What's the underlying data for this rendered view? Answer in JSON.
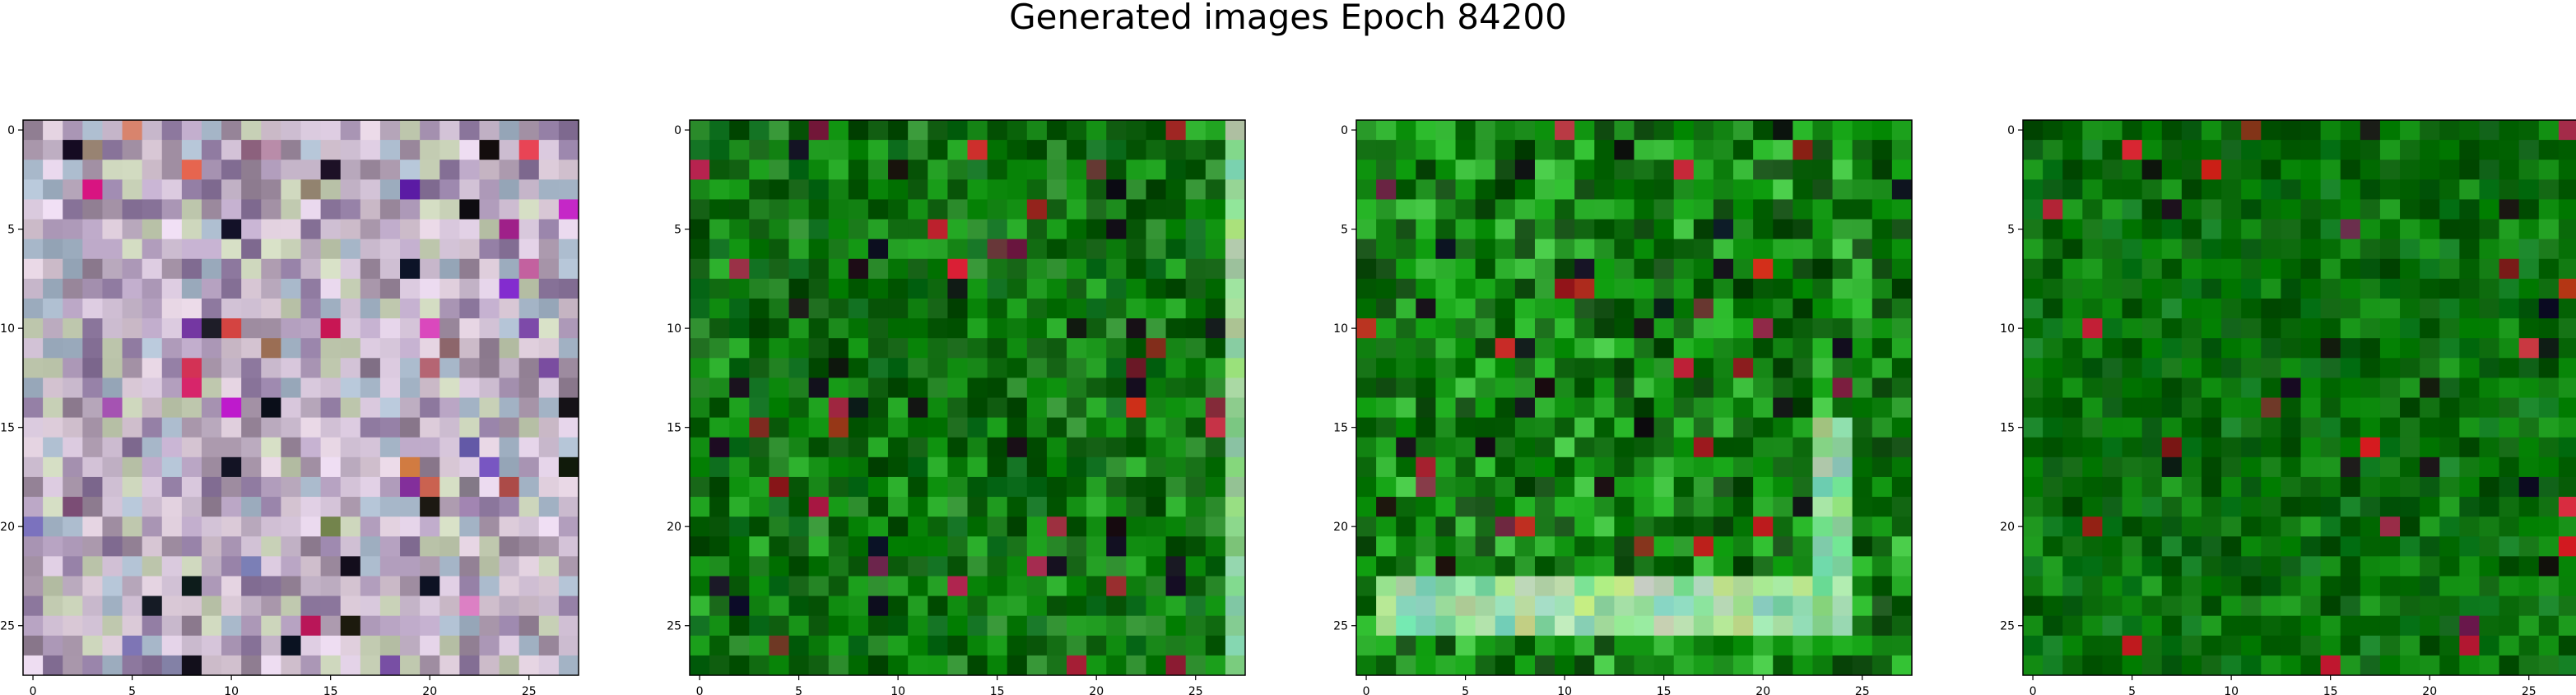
{
  "figure": {
    "title": "Generated images Epoch 84200"
  },
  "chart_data": [
    {
      "type": "heatmap",
      "title": "",
      "xlabel": "",
      "ylabel": "",
      "grid_size": 28,
      "x_ticks": [
        "0",
        "5",
        "10",
        "15",
        "20",
        "25"
      ],
      "y_ticks": [
        "0",
        "5",
        "10",
        "15",
        "20",
        "25"
      ],
      "dominant_color": "#c8b8cc",
      "description_palette": [
        "#c8b8cc",
        "#b7a3c2",
        "#d9c8d6",
        "#a7b7c9",
        "#c6cfb5",
        "#9c8a9e",
        "#e0cfe4",
        "#8f7aa0"
      ]
    },
    {
      "type": "heatmap",
      "title": "",
      "xlabel": "",
      "ylabel": "",
      "grid_size": 28,
      "x_ticks": [
        "0",
        "5",
        "10",
        "15",
        "20",
        "25"
      ],
      "y_ticks": [
        "0",
        "5",
        "10",
        "15",
        "20",
        "25"
      ],
      "dominant_color": "#0b7a0b",
      "description_palette": [
        "#0b7a0b",
        "#066006",
        "#138f13",
        "#0a6a1a",
        "#1fa31f",
        "#045004",
        "#2a8a2a",
        "#0d5c0d"
      ]
    },
    {
      "type": "heatmap",
      "title": "",
      "xlabel": "",
      "ylabel": "",
      "grid_size": 28,
      "x_ticks": [
        "0",
        "5",
        "10",
        "15",
        "20",
        "25"
      ],
      "y_ticks": [
        "0",
        "5",
        "10",
        "15",
        "20",
        "25"
      ],
      "dominant_color": "#159a15",
      "description_palette": [
        "#159a15",
        "#0c7d0c",
        "#21b021",
        "#0a5e0a",
        "#3cbf3c",
        "#086508",
        "#1e8f1e",
        "#0f4a0f"
      ]
    },
    {
      "type": "heatmap",
      "title": "",
      "xlabel": "",
      "ylabel": "",
      "grid_size": 28,
      "x_ticks": [
        "0",
        "5",
        "10",
        "15",
        "20",
        "25"
      ],
      "y_ticks": [
        "0",
        "5",
        "10",
        "15",
        "20",
        "25"
      ],
      "dominant_color": "#077007",
      "description_palette": [
        "#077007",
        "#055a05",
        "#0c850c",
        "#0a6a0a",
        "#118f11",
        "#046204",
        "#0e7a1e",
        "#03550b"
      ]
    }
  ]
}
